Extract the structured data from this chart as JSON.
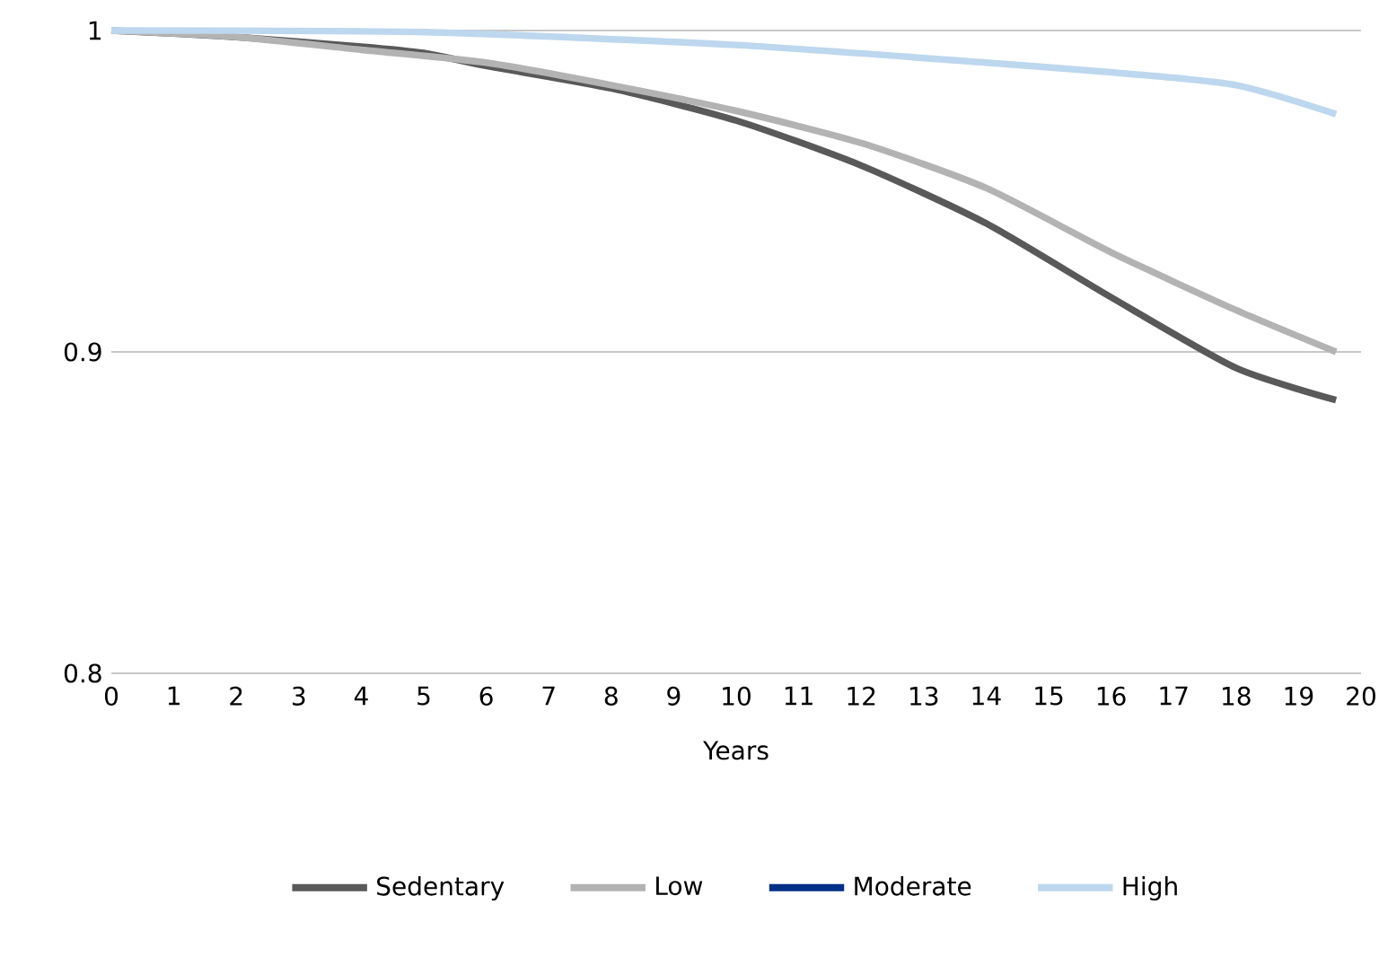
{
  "chart_data": {
    "type": "line",
    "xlabel": "Years",
    "xlim": [
      0,
      20
    ],
    "xticks": [
      0,
      1,
      2,
      3,
      4,
      5,
      6,
      7,
      8,
      9,
      10,
      11,
      12,
      13,
      14,
      15,
      16,
      17,
      18,
      19,
      20
    ],
    "ylim": [
      0.8,
      1
    ],
    "yticks": [
      0.8,
      0.9,
      1
    ],
    "grid": "y",
    "legend": "bottom",
    "marker": "none",
    "line_style": "solid",
    "series": [
      {
        "name": "Sedentary",
        "color": "#595959",
        "x": [
          0,
          2,
          4,
          5,
          6,
          8,
          10,
          12,
          14,
          16,
          18,
          19.6
        ],
        "values": [
          1,
          0.998,
          0.995,
          0.993,
          0.989,
          0.982,
          0.972,
          0.958,
          0.94,
          0.917,
          0.895,
          0.885
        ]
      },
      {
        "name": "Low",
        "color": "#b3b3b3",
        "x": [
          0,
          2,
          4,
          6,
          8,
          10,
          12,
          14,
          16,
          18,
          19.6
        ],
        "values": [
          1,
          0.998,
          0.994,
          0.99,
          0.983,
          0.975,
          0.965,
          0.951,
          0.931,
          0.913,
          0.9
        ]
      },
      {
        "name": "Moderate",
        "color": "#002f87",
        "values": [
          null
        ]
      },
      {
        "name": "High",
        "color": "#bdd7ee",
        "x": [
          0,
          5,
          10,
          14,
          16,
          18,
          19.6
        ],
        "values": [
          1,
          0.9995,
          0.9955,
          0.99,
          0.987,
          0.983,
          0.974
        ]
      }
    ]
  }
}
